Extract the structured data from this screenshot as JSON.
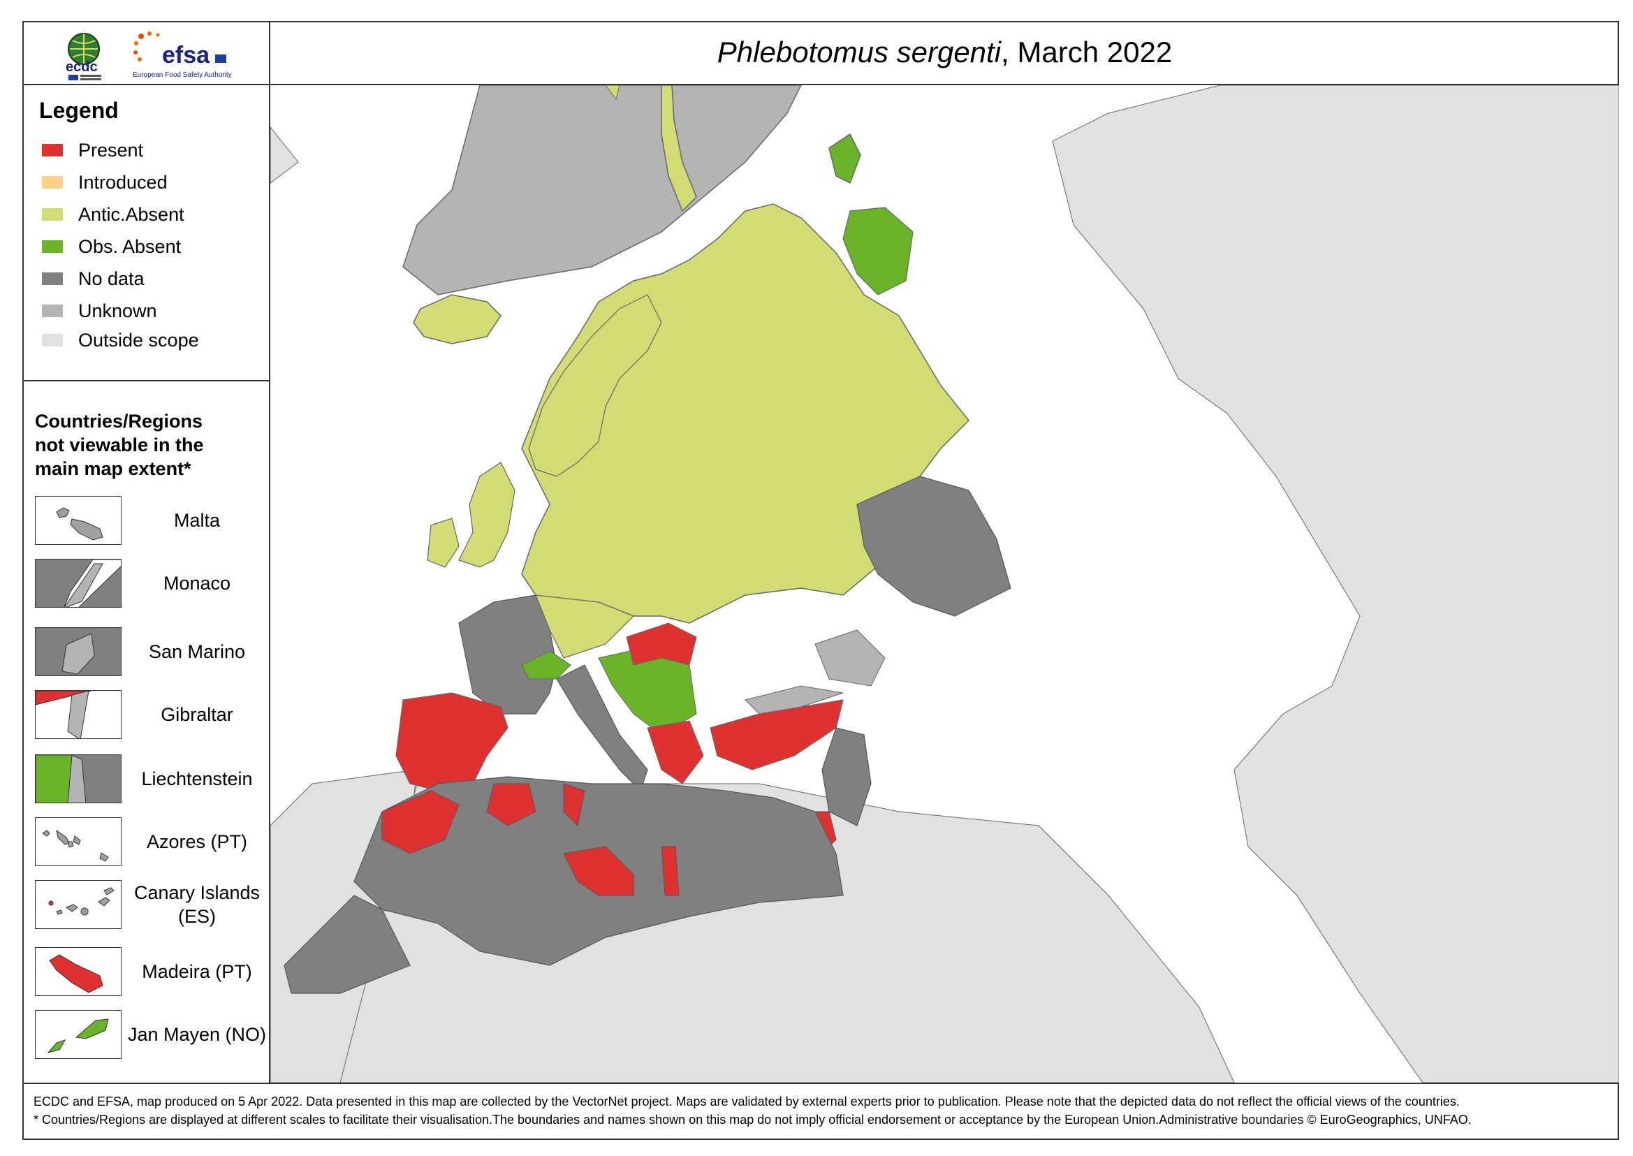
{
  "title": {
    "species": "Phlebotomus sergenti",
    "rest": ", March 2022"
  },
  "logos": {
    "ecdc": "ecdc",
    "efsa": "efsa",
    "efsa_sub": "European Food Safety Authority"
  },
  "legend": {
    "title": "Legend",
    "items": [
      {
        "label": "Present",
        "color": "#e03131"
      },
      {
        "label": "Introduced",
        "color": "#fcd28a"
      },
      {
        "label": "Antic.Absent",
        "color": "#d3dc74"
      },
      {
        "label": "Obs. Absent",
        "color": "#6ab429"
      },
      {
        "label": "No data",
        "color": "#808080"
      },
      {
        "label": "Unknown",
        "color": "#b4b4b4"
      },
      {
        "label": "Outside scope",
        "color": "#e1e1e1"
      }
    ]
  },
  "insets": {
    "title_lines": [
      "Countries/Regions",
      "not viewable in the",
      "main map extent*"
    ],
    "items": [
      {
        "label": "Malta"
      },
      {
        "label": "Monaco"
      },
      {
        "label": "San Marino"
      },
      {
        "label": "Gibraltar"
      },
      {
        "label": "Liechtenstein"
      },
      {
        "label": "Azores (PT)"
      },
      {
        "label": "Canary Islands (ES)"
      },
      {
        "label": "Madeira (PT)"
      },
      {
        "label": "Jan Mayen (NO)"
      }
    ]
  },
  "footer": {
    "line1": "ECDC and EFSA, map produced on 5 Apr 2022. Data presented in this map are collected by the VectorNet project. Maps are validated by external experts prior to publication. Please note that the depicted data do not reflect the official views of the countries.",
    "line2": "* Countries/Regions are displayed at different scales to facilitate their visualisation.The boundaries and names shown on this map do not imply official endorsement or acceptance by the European Union.Administrative boundaries © EuroGeographics, UNFAO."
  }
}
